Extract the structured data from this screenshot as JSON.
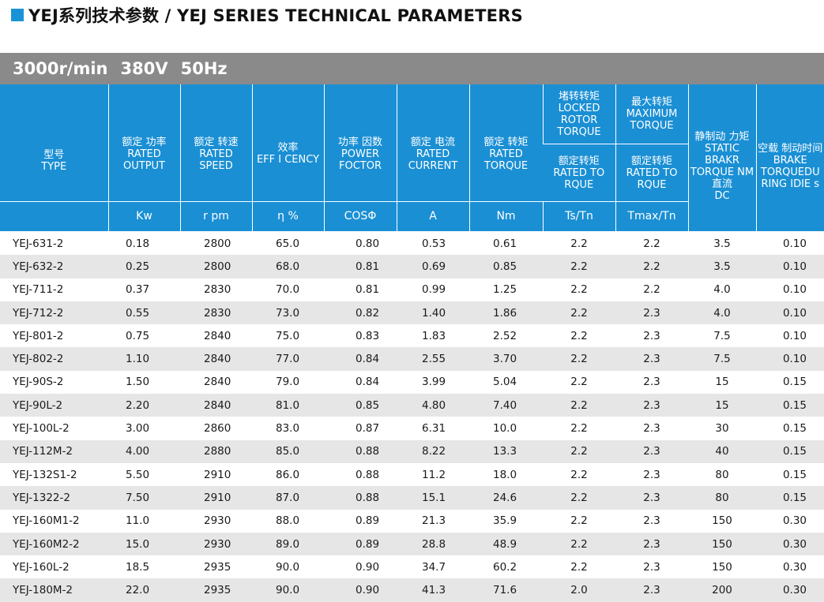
{
  "header": {
    "title": "YEJ系列技术参数 / YEJ SERIES TECHNICAL PARAMETERS",
    "title_color": "#1a93d6"
  },
  "spec_bar": {
    "speed": "3000r/min",
    "voltage": "380V",
    "frequency": "50Hz"
  },
  "columns": [
    {
      "cn": "型号",
      "en": "TYPE",
      "unit": ""
    },
    {
      "cn": "额定 功率",
      "en": "RATED OUTPUT",
      "unit": "Kw"
    },
    {
      "cn": "额定 转速",
      "en": "RATED SPEED",
      "unit": "r pm"
    },
    {
      "cn": "效率",
      "en": "EFF I CENCY",
      "unit": "η %"
    },
    {
      "cn": "功率 因数",
      "en": "POWER FOCTOR",
      "unit": "COSΦ"
    },
    {
      "cn": "额定 电流",
      "en": "RATED CURRENT",
      "unit": "A"
    },
    {
      "cn": "额定 转矩",
      "en": "RATED TORQUE",
      "unit": "Nm"
    },
    {
      "cn": "堵转转矩",
      "en": "LOCKED ROTOR TORQUE",
      "sub_cn": "额定转矩",
      "sub_en": "RATED TO RQUE",
      "unit": "Ts/Tn"
    },
    {
      "cn": "最大转矩",
      "en": "MAXIMUM TORQUE",
      "sub_cn": "额定转矩",
      "sub_en": "RATED TO RQUE",
      "unit": "Tmax/Tn"
    },
    {
      "cn": "静制动 力矩",
      "en": "STATIC BRAKR TORQUE NM",
      "extra_cn": "直流",
      "extra_en": "DC"
    },
    {
      "cn": "空载 制动时间",
      "en": "BRAKE TORQUEDU RING IDIE s"
    }
  ],
  "rows": [
    [
      "YEJ-631-2",
      "0.18",
      "2800",
      "65.0",
      "0.80",
      "0.53",
      "0.61",
      "2.2",
      "2.2",
      "3.5",
      "0.10"
    ],
    [
      "YEJ-632-2",
      "0.25",
      "2800",
      "68.0",
      "0.81",
      "0.69",
      "0.85",
      "2.2",
      "2.2",
      "3.5",
      "0.10"
    ],
    [
      "YEJ-711-2",
      "0.37",
      "2830",
      "70.0",
      "0.81",
      "0.99",
      "1.25",
      "2.2",
      "2.2",
      "4.0",
      "0.10"
    ],
    [
      "YEJ-712-2",
      "0.55",
      "2830",
      "73.0",
      "0.82",
      "1.40",
      "1.86",
      "2.2",
      "2.3",
      "4.0",
      "0.10"
    ],
    [
      "YEJ-801-2",
      "0.75",
      "2840",
      "75.0",
      "0.83",
      "1.83",
      "2.52",
      "2.2",
      "2.3",
      "7.5",
      "0.10"
    ],
    [
      "YEJ-802-2",
      "1.10",
      "2840",
      "77.0",
      "0.84",
      "2.55",
      "3.70",
      "2.2",
      "2.3",
      "7.5",
      "0.10"
    ],
    [
      "YEJ-90S-2",
      "1.50",
      "2840",
      "79.0",
      "0.84",
      "3.99",
      "5.04",
      "2.2",
      "2.3",
      "15",
      "0.15"
    ],
    [
      "YEJ-90L-2",
      "2.20",
      "2840",
      "81.0",
      "0.85",
      "4.80",
      "7.40",
      "2.2",
      "2.3",
      "15",
      "0.15"
    ],
    [
      "YEJ-100L-2",
      "3.00",
      "2860",
      "83.0",
      "0.87",
      "6.31",
      "10.0",
      "2.2",
      "2.3",
      "30",
      "0.15"
    ],
    [
      "YEJ-112M-2",
      "4.00",
      "2880",
      "85.0",
      "0.88",
      "8.22",
      "13.3",
      "2.2",
      "2.3",
      "40",
      "0.15"
    ],
    [
      "YEJ-132S1-2",
      "5.50",
      "2910",
      "86.0",
      "0.88",
      "11.2",
      "18.0",
      "2.2",
      "2.3",
      "80",
      "0.15"
    ],
    [
      "YEJ-1322-2",
      "7.50",
      "2910",
      "87.0",
      "0.88",
      "15.1",
      "24.6",
      "2.2",
      "2.3",
      "80",
      "0.15"
    ],
    [
      "YEJ-160M1-2",
      "11.0",
      "2930",
      "88.0",
      "0.89",
      "21.3",
      "35.9",
      "2.2",
      "2.3",
      "150",
      "0.30"
    ],
    [
      "YEJ-160M2-2",
      "15.0",
      "2930",
      "89.0",
      "0.89",
      "28.8",
      "48.9",
      "2.2",
      "2.3",
      "150",
      "0.30"
    ],
    [
      "YEJ-160L-2",
      "18.5",
      "2935",
      "90.0",
      "0.90",
      "34.7",
      "60.2",
      "2.2",
      "2.3",
      "150",
      "0.30"
    ],
    [
      "YEJ-180M-2",
      "22.0",
      "2935",
      "90.0",
      "0.90",
      "41.3",
      "71.6",
      "2.0",
      "2.3",
      "200",
      "0.30"
    ]
  ]
}
